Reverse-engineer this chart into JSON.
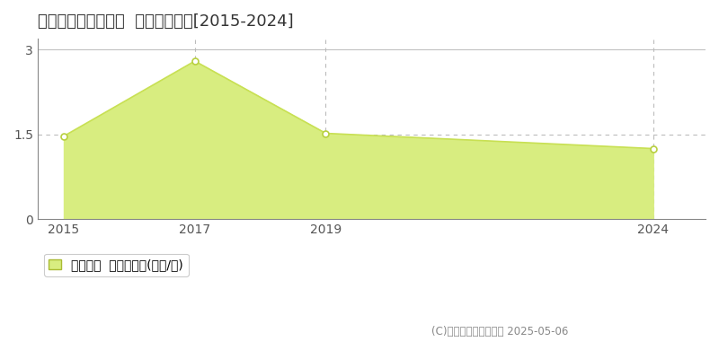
{
  "title": "吉野郡東吉野村鷲家  土地価格推移[2015-2024]",
  "years": [
    2015,
    2017,
    2019,
    2024
  ],
  "values": [
    1.47,
    2.8,
    1.52,
    1.25
  ],
  "line_color": "#c8e053",
  "fill_color": "#d8ed80",
  "marker_color": "#ffffff",
  "marker_edge_color": "#b8d040",
  "background_color": "#ffffff",
  "yticks": [
    0,
    1.5,
    3
  ],
  "xlim": [
    2014.6,
    2024.8
  ],
  "ylim": [
    0,
    3.2
  ],
  "legend_label": "土地価格  平均坪単価(万円/坪)",
  "copyright": "(C)土地価格ドットコム 2025-05-06",
  "xtick_years": [
    2015,
    2017,
    2019,
    2024
  ],
  "grid_color": "#bbbbbb",
  "title_fontsize": 13,
  "axis_fontsize": 10,
  "legend_fontsize": 10
}
